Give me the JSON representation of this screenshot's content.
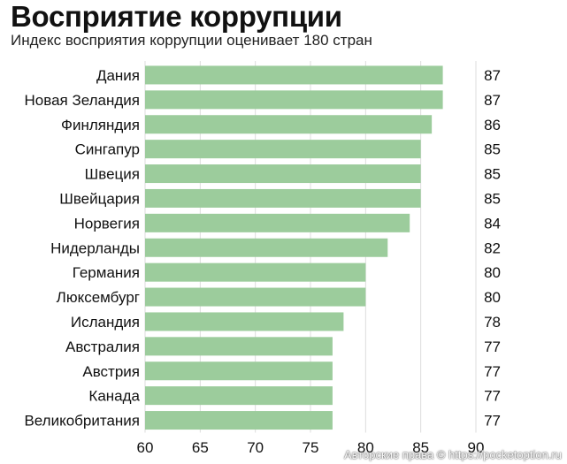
{
  "title": "Восприятие коррупции",
  "subtitle": "Индекс восприятия коррупции оценивает 180 стран",
  "watermark": "Авторские права © https://pocketoption.ru",
  "colors": {
    "bar": "#9ccc9c",
    "grid": "#dddddd",
    "text": "#111111"
  },
  "chart_data": {
    "type": "bar",
    "orientation": "horizontal",
    "title": "Восприятие коррупции",
    "subtitle": "Индекс восприятия коррупции оценивает 180 стран",
    "categories": [
      "Дания",
      "Новая Зеландия",
      "Финляндия",
      "Сингапур",
      "Швеция",
      "Швейцария",
      "Норвегия",
      "Нидерланды",
      "Германия",
      "Люксембург",
      "Исландия",
      "Австралия",
      "Австрия",
      "Канада",
      "Великобритания"
    ],
    "values": [
      87,
      87,
      86,
      85,
      85,
      85,
      84,
      82,
      80,
      80,
      78,
      77,
      77,
      77,
      77
    ],
    "xlim": [
      60,
      90
    ],
    "xticks": [
      60,
      65,
      70,
      75,
      80,
      85,
      90
    ],
    "grid": true,
    "data_labels": true
  }
}
